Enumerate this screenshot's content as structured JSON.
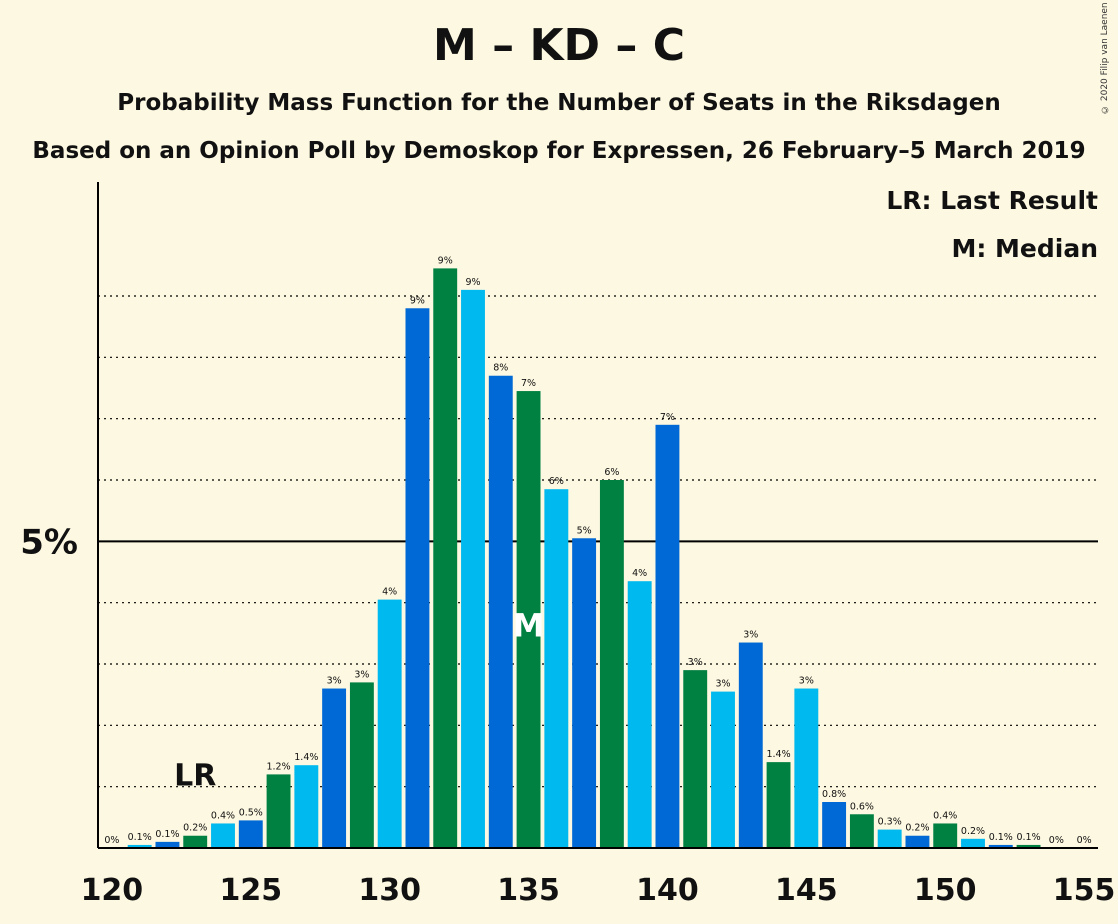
{
  "title": "M – KD – C",
  "subtitle": "Probability Mass Function for the Number of Seats in the Riksdagen",
  "source": "Based on an Opinion Poll by Demoskop for Expressen, 26 February–5 March 2019",
  "copyright": "© 2020 Filip van Laenen",
  "legend": {
    "lr": "LR: Last Result",
    "m": "M: Median"
  },
  "chart_data": {
    "type": "bar",
    "title": "M – KD – C",
    "xlabel": "",
    "ylabel": "",
    "ylim": [
      0,
      10.5
    ],
    "y_tick_labels": [
      {
        "value": 5,
        "label": "5%"
      }
    ],
    "x_tick_labels": [
      "120",
      "125",
      "130",
      "135",
      "140",
      "145",
      "150",
      "155"
    ],
    "x_ticks": [
      120,
      125,
      130,
      135,
      140,
      145,
      150,
      155
    ],
    "grid": "dotted horizontal every 1%",
    "colors": [
      "#008142",
      "#00b9ee",
      "#0069d5"
    ],
    "last_result": {
      "x": 123,
      "label": "LR"
    },
    "median": {
      "x": 135,
      "label": "M"
    },
    "x": [
      120,
      121,
      122,
      123,
      124,
      125,
      126,
      127,
      128,
      129,
      130,
      131,
      132,
      133,
      134,
      135,
      136,
      137,
      138,
      139,
      140,
      141,
      142,
      143,
      144,
      145,
      146,
      147,
      148,
      149,
      150,
      151,
      152,
      153,
      154,
      155
    ],
    "values": [
      0,
      0.05,
      0.1,
      0.2,
      0.4,
      0.45,
      1.2,
      1.35,
      2.6,
      2.7,
      4.05,
      8.8,
      9.45,
      9.1,
      7.7,
      7.45,
      5.85,
      5.05,
      6.0,
      4.35,
      6.9,
      2.9,
      2.55,
      3.35,
      1.4,
      2.6,
      0.75,
      0.55,
      0.3,
      0.2,
      0.4,
      0.15,
      0.05,
      0.05,
      0,
      0
    ],
    "labels": [
      "0%",
      "0.1%",
      "0.1%",
      "0.2%",
      "0.4%",
      "0.5%",
      "1.2%",
      "1.4%",
      "3%",
      "3%",
      "4%",
      "9%",
      "9%",
      "9%",
      "8%",
      "7%",
      "6%",
      "5%",
      "6%",
      "4%",
      "7%",
      "3%",
      "3%",
      "3%",
      "1.4%",
      "3%",
      "0.8%",
      "0.6%",
      "0.3%",
      "0.2%",
      "0.4%",
      "0.2%",
      "0.1%",
      "0.1%",
      "0%",
      "0%"
    ]
  }
}
